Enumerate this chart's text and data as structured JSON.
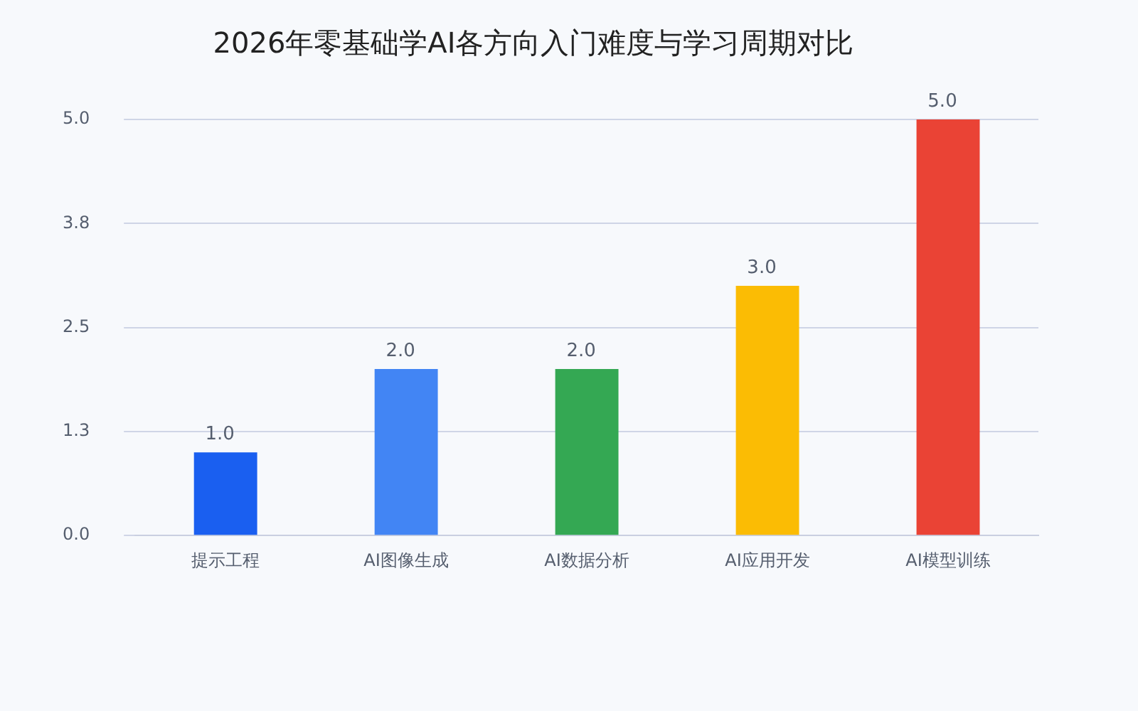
{
  "chart_data": {
    "type": "bar",
    "title": "2026年零基础学AI各方向入门难度与学习周期对比",
    "categories": [
      "提示工程",
      "AI图像生成",
      "AI数据分析",
      "AI应用开发",
      "AI模型训练"
    ],
    "values": [
      1,
      2,
      2,
      3,
      5
    ],
    "value_labels": [
      "1.0",
      "2.0",
      "2.0",
      "3.0",
      "5.0"
    ],
    "colors": [
      "#1a5ff0",
      "#4285f4",
      "#34a853",
      "#fbbc04",
      "#ea4335"
    ],
    "ylim": [
      0,
      5
    ],
    "yticks": [
      {
        "value": 0,
        "label": "0.0"
      },
      {
        "value": 1.25,
        "label": "1.3"
      },
      {
        "value": 2.5,
        "label": "2.5"
      },
      {
        "value": 3.75,
        "label": "3.8"
      },
      {
        "value": 5,
        "label": "5.0"
      }
    ],
    "grid": "y",
    "legend": false
  }
}
